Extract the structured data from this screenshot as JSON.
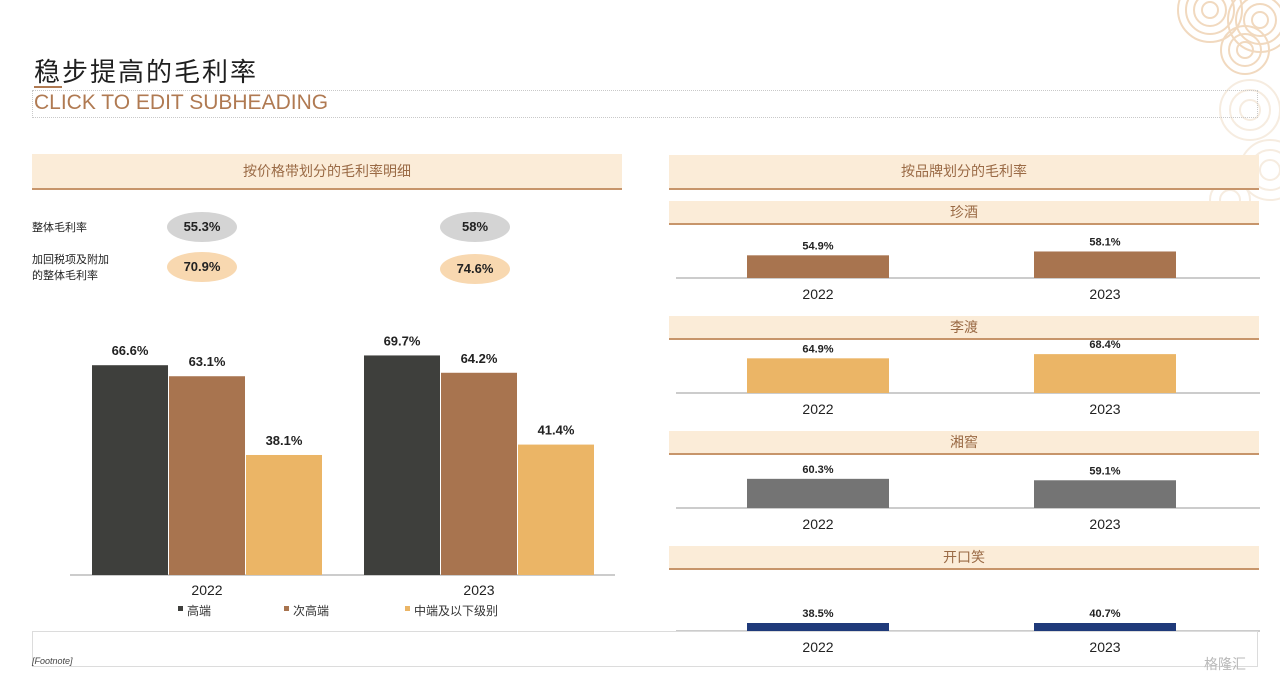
{
  "page": {
    "title": "稳步提高的毛利率",
    "subheading": "CLICK TO EDIT SUBHEADING",
    "footnote": "[Footnote]",
    "watermark": "格隆汇"
  },
  "summary": {
    "rows": [
      {
        "label": "整体毛利率",
        "values": [
          "55.3%",
          "58%"
        ]
      },
      {
        "label_line1": "加回税项及附加",
        "label_line2": "的整体毛利率",
        "values": [
          "70.9%",
          "74.6%"
        ]
      }
    ]
  },
  "colors": {
    "accent": "#b07a52",
    "band_bg": "#fbecd8",
    "high_end": "#3e3f3c",
    "sub_high_end": "#a8744f",
    "mid_low": "#ebb566",
    "zhenjiu": "#a8744f",
    "lidu": "#ebb566",
    "xiangjiao": "#747474",
    "kaikouxiao": "#1f3a7a"
  },
  "chart_data": [
    {
      "type": "bar",
      "title": "按价格带划分的毛利率明细",
      "categories": [
        "2022",
        "2023"
      ],
      "series": [
        {
          "name": "高端",
          "values": [
            66.6,
            69.7
          ],
          "labels": [
            "66.6%",
            "69.7%"
          ]
        },
        {
          "name": "次高端",
          "values": [
            63.1,
            64.2
          ],
          "labels": [
            "63.1%",
            "64.2%"
          ]
        },
        {
          "name": "中端及以下级别",
          "values": [
            38.1,
            41.4
          ],
          "labels": [
            "38.1%",
            "41.4%"
          ]
        }
      ],
      "legend": "bottom",
      "grid": false
    },
    {
      "type": "bar",
      "title": "按品牌划分的毛利率",
      "panels": [
        {
          "name": "珍酒",
          "categories": [
            "2022",
            "2023"
          ],
          "values": [
            54.9,
            58.1
          ],
          "labels": [
            "54.9%",
            "58.1%"
          ]
        },
        {
          "name": "李渡",
          "categories": [
            "2022",
            "2023"
          ],
          "values": [
            64.9,
            68.4
          ],
          "labels": [
            "64.9%",
            "68.4%"
          ]
        },
        {
          "name": "湘窖",
          "categories": [
            "2022",
            "2023"
          ],
          "values": [
            60.3,
            59.1
          ],
          "labels": [
            "60.3%",
            "59.1%"
          ]
        },
        {
          "name": "开口笑",
          "categories": [
            "2022",
            "2023"
          ],
          "values": [
            38.5,
            40.7
          ],
          "labels": [
            "38.5%",
            "40.7%"
          ]
        }
      ],
      "grid": false
    }
  ]
}
